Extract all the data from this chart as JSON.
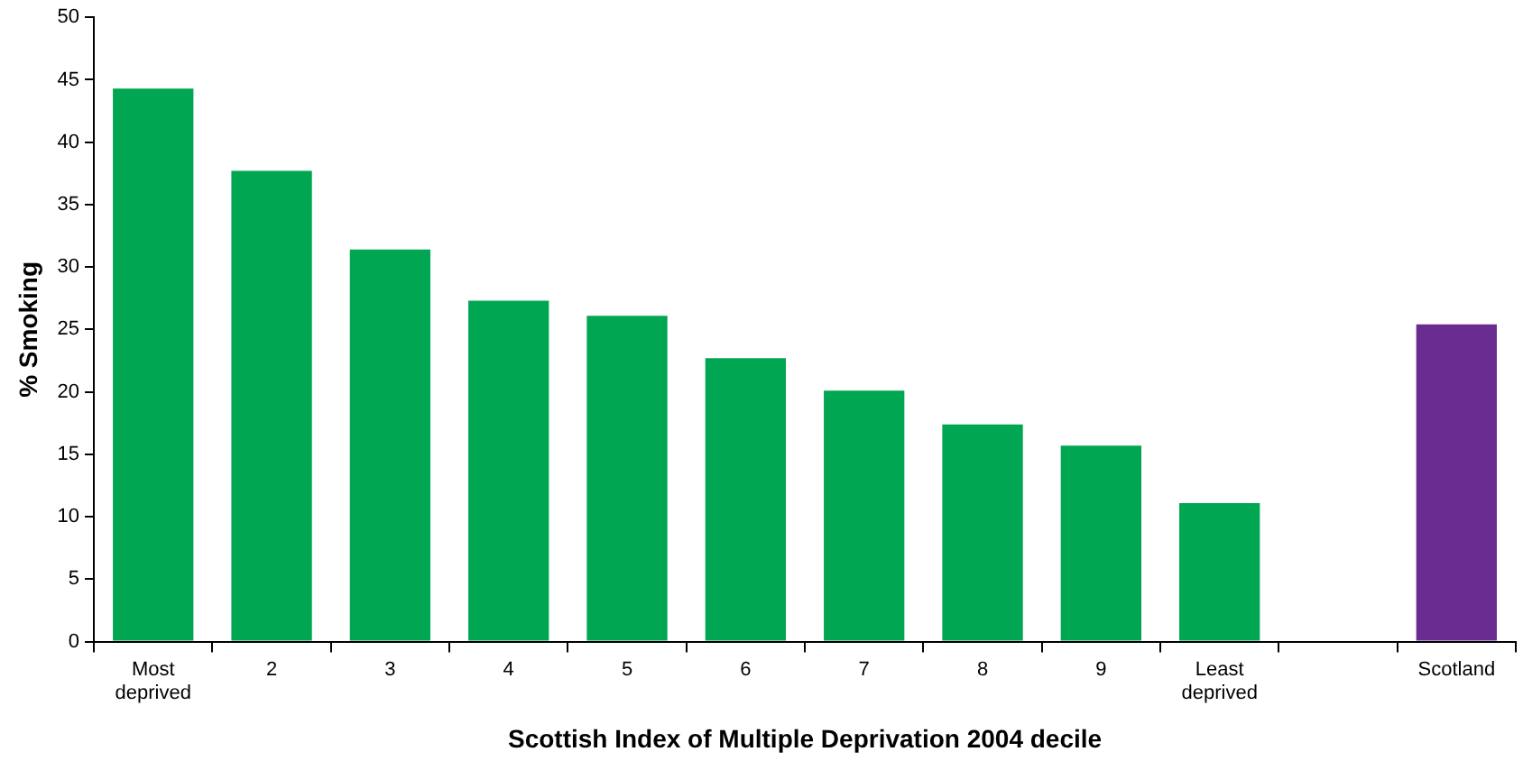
{
  "chart_data": {
    "type": "bar",
    "xlabel": "Scottish Index of Multiple Deprivation 2004 decile",
    "ylabel": "% Smoking",
    "categories": [
      "Most deprived",
      "2",
      "3",
      "4",
      "5",
      "6",
      "7",
      "8",
      "9",
      "Least deprived",
      null,
      "Scotland"
    ],
    "values": [
      44.3,
      37.7,
      31.4,
      27.3,
      26.1,
      22.7,
      20.1,
      17.4,
      15.7,
      11.1,
      null,
      25.4
    ],
    "colors": [
      "#00a651",
      "#00a651",
      "#00a651",
      "#00a651",
      "#00a651",
      "#00a651",
      "#00a651",
      "#00a651",
      "#00a651",
      "#00a651",
      "#00a651",
      "#6a2c91"
    ],
    "ylim": [
      0,
      50
    ],
    "yticks": [
      0,
      5,
      10,
      15,
      20,
      25,
      30,
      35,
      40,
      45,
      50
    ],
    "grid": false,
    "legend": false
  }
}
